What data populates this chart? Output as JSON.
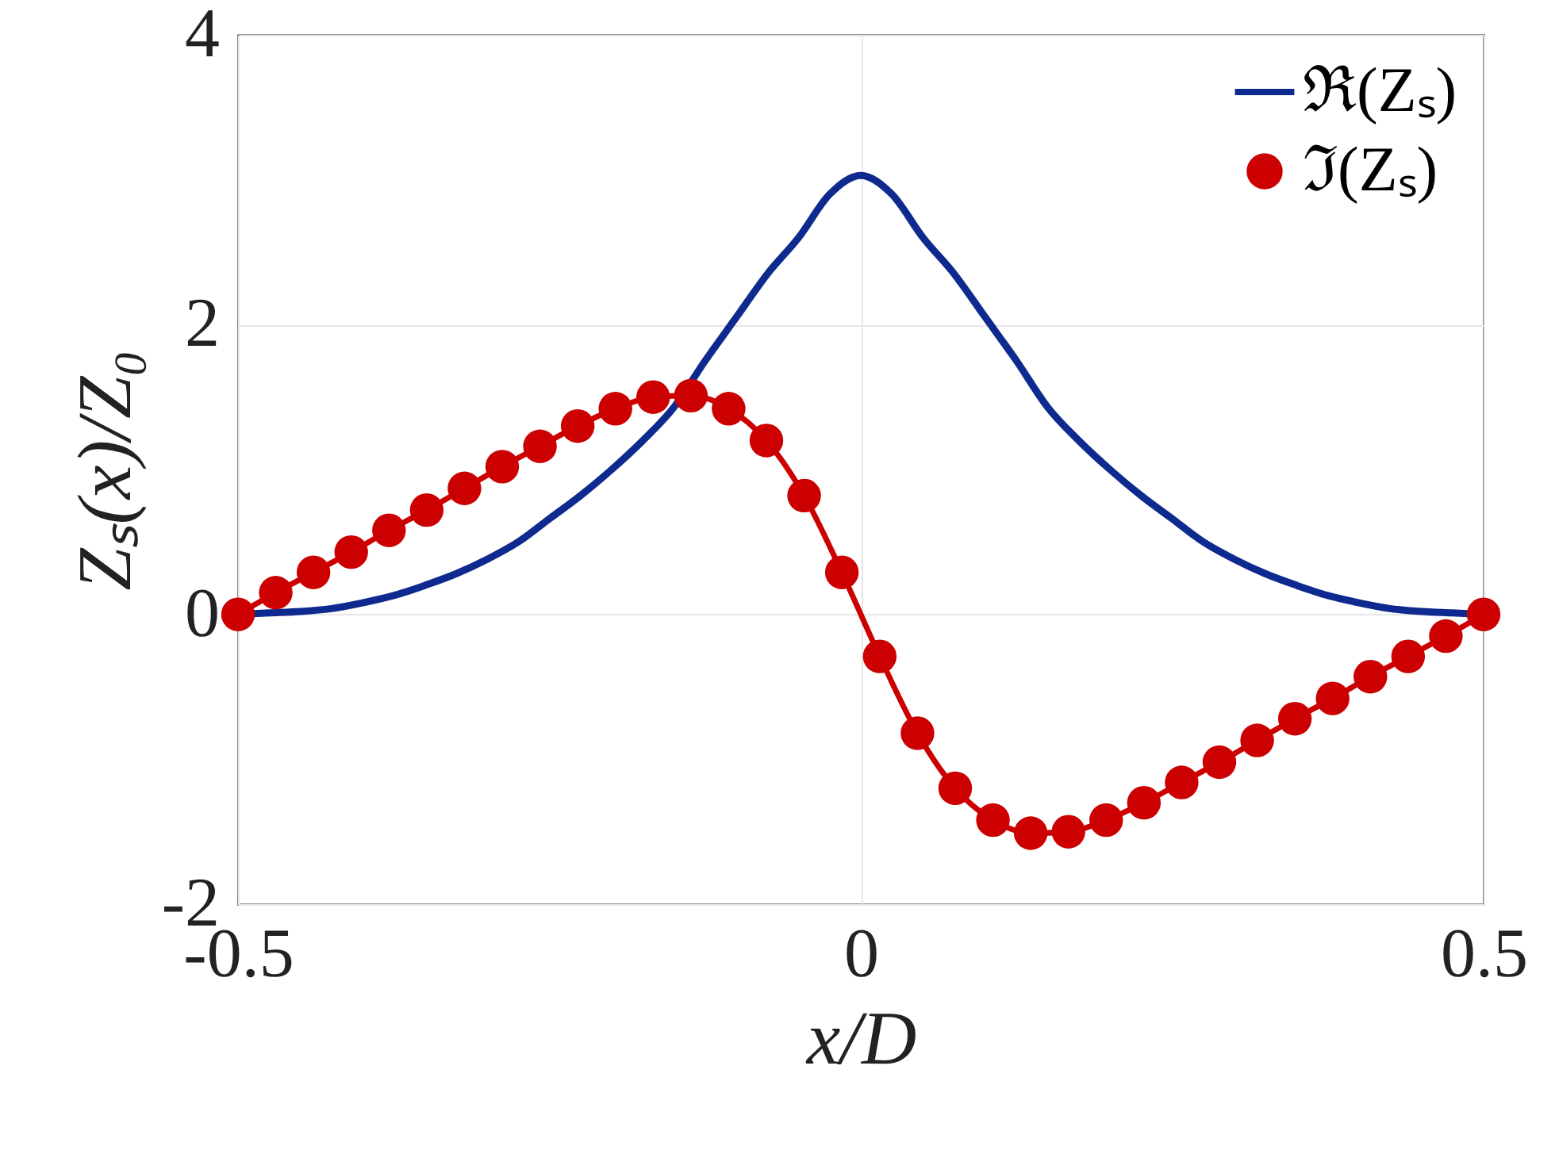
{
  "chart_data": {
    "type": "line",
    "xlabel": "x/D",
    "ylabel": "Zₛ(x)/Z₀",
    "xlim": [
      -0.5,
      0.5
    ],
    "xticks": [
      -0.5,
      0,
      0.5
    ],
    "ylim": [
      -2,
      4
    ],
    "yticks": [
      -2,
      0,
      2,
      4
    ],
    "grid": true,
    "legend": "top right",
    "line_style": "solid",
    "series": [
      {
        "name": "ℜ(Zₛ)",
        "color": "#0e2a8e",
        "x": [
          -0.5,
          -0.475,
          -0.45,
          -0.425,
          -0.4,
          -0.375,
          -0.35,
          -0.325,
          -0.3,
          -0.275,
          -0.25,
          -0.225,
          -0.2,
          -0.175,
          -0.15,
          -0.125,
          -0.1,
          -0.075,
          -0.05,
          -0.025,
          0,
          0.025,
          0.05,
          0.075,
          0.1,
          0.125,
          0.15,
          0.175,
          0.2,
          0.225,
          0.25,
          0.275,
          0.3,
          0.325,
          0.35,
          0.375,
          0.4,
          0.425,
          0.45,
          0.475,
          0.5
        ],
        "values": [
          0,
          0.01,
          0.02,
          0.04,
          0.08,
          0.13,
          0.2,
          0.28,
          0.38,
          0.5,
          0.66,
          0.82,
          1.0,
          1.2,
          1.43,
          1.75,
          2.05,
          2.35,
          2.6,
          2.9,
          3.03,
          2.9,
          2.6,
          2.35,
          2.05,
          1.75,
          1.43,
          1.2,
          1.0,
          0.82,
          0.66,
          0.5,
          0.38,
          0.28,
          0.2,
          0.13,
          0.08,
          0.04,
          0.02,
          0.01,
          0
        ]
      },
      {
        "name": "ℑ(Zₛ)",
        "color": "#cc0000",
        "marker": "circle",
        "x": [
          -0.5,
          -0.4697,
          -0.4394,
          -0.4091,
          -0.3788,
          -0.3485,
          -0.3182,
          -0.2879,
          -0.2576,
          -0.2273,
          -0.197,
          -0.1667,
          -0.1364,
          -0.1061,
          -0.0758,
          -0.0455,
          -0.0152,
          0.0152,
          0.0455,
          0.0758,
          0.1061,
          0.1364,
          0.1667,
          0.197,
          0.2273,
          0.2576,
          0.2879,
          0.3182,
          0.3485,
          0.3788,
          0.4091,
          0.4394,
          0.4697,
          0.5
        ],
        "values": [
          0,
          0.15,
          0.29,
          0.43,
          0.58,
          0.72,
          0.87,
          1.02,
          1.16,
          1.3,
          1.42,
          1.5,
          1.51,
          1.42,
          1.2,
          0.82,
          0.29,
          -0.29,
          -0.82,
          -1.2,
          -1.42,
          -1.51,
          -1.5,
          -1.42,
          -1.3,
          -1.16,
          -1.02,
          -0.87,
          -0.72,
          -0.58,
          -0.43,
          -0.29,
          -0.15,
          0
        ]
      }
    ]
  }
}
